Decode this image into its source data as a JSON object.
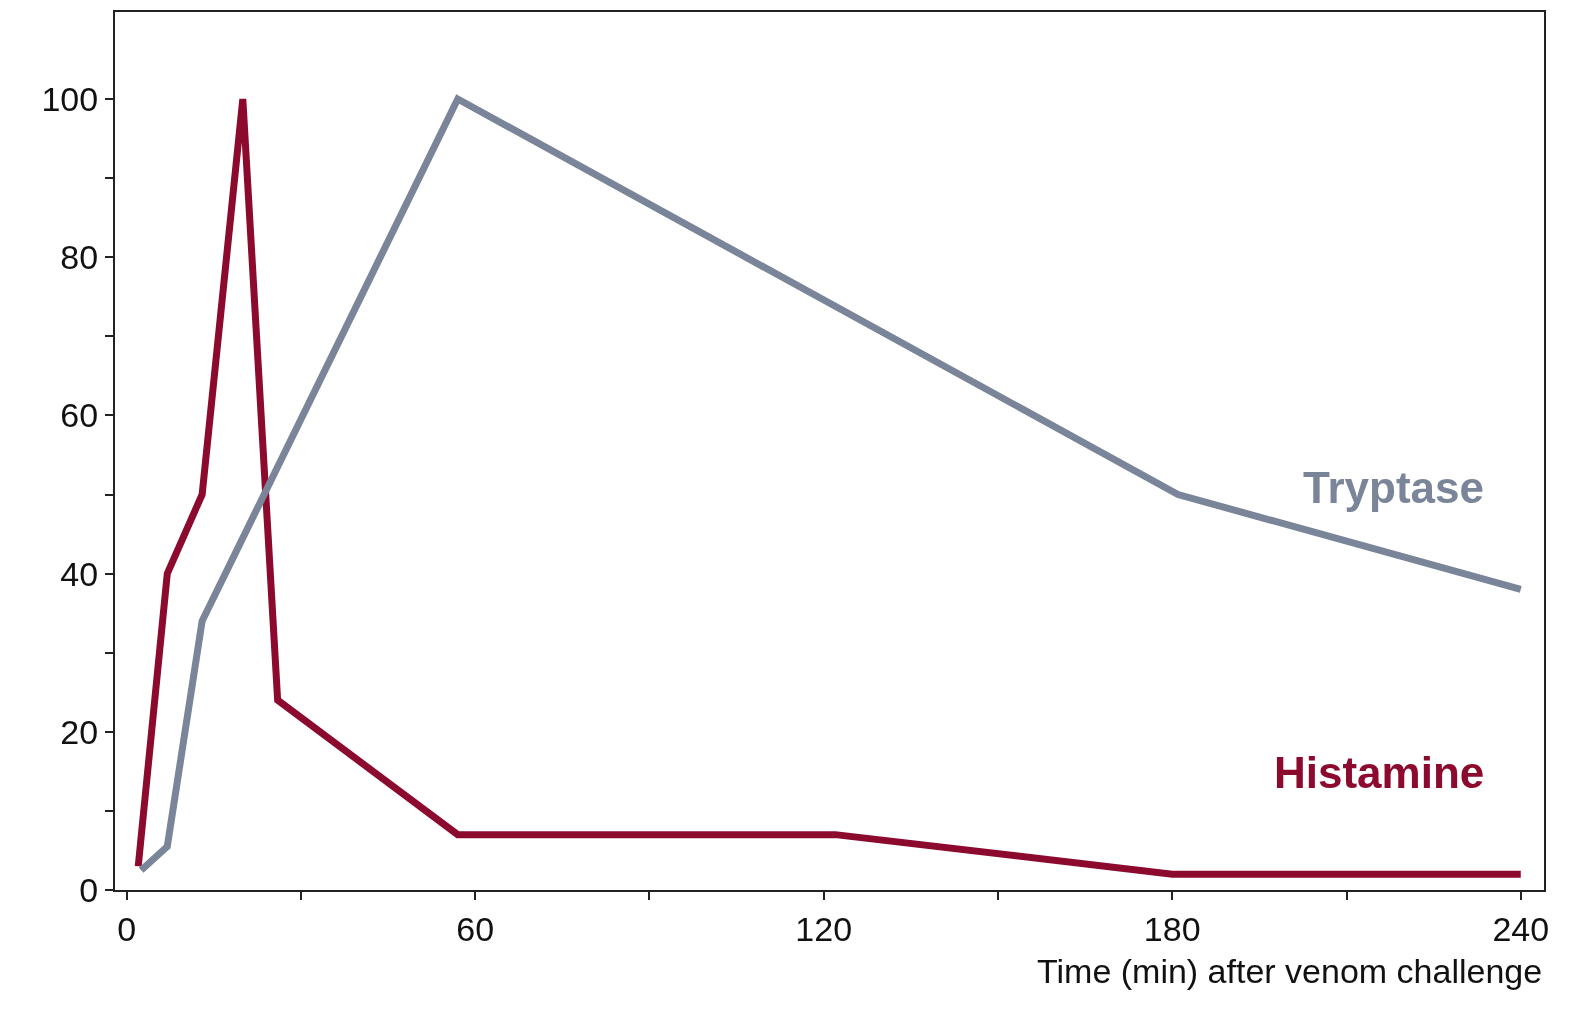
{
  "chart_data": {
    "type": "line",
    "xlabel": "Time (min) after venom challenge",
    "series": [
      {
        "name": "Histamine",
        "color": "#8b0a2e",
        "x": [
          2,
          7,
          13,
          20,
          26,
          57,
          122,
          180,
          240
        ],
        "values": [
          3,
          40,
          50,
          100,
          24,
          7,
          7,
          2,
          2
        ]
      },
      {
        "name": "Tryptase",
        "color": "#7a8599",
        "x": [
          2.5,
          7,
          13,
          57,
          181,
          240
        ],
        "values": [
          2.5,
          5.5,
          34,
          100,
          50,
          38
        ]
      }
    ],
    "xlim": [
      -2,
      244
    ],
    "ylim": [
      0,
      111
    ],
    "xticks": [
      0,
      {
        "value": 30,
        "label": null
      },
      60,
      {
        "value": 90,
        "label": null
      },
      120,
      {
        "value": 150,
        "label": null
      },
      180,
      {
        "value": 210,
        "label": null
      },
      240
    ],
    "yticks": [
      0,
      {
        "value": 10,
        "label": null
      },
      20,
      {
        "value": 30,
        "label": null
      },
      40,
      {
        "value": 50,
        "label": null
      },
      60,
      {
        "value": 70,
        "label": null
      },
      80,
      {
        "value": 90,
        "label": null
      },
      100
    ],
    "legend": false,
    "marker": "none",
    "line_style": "solid"
  }
}
